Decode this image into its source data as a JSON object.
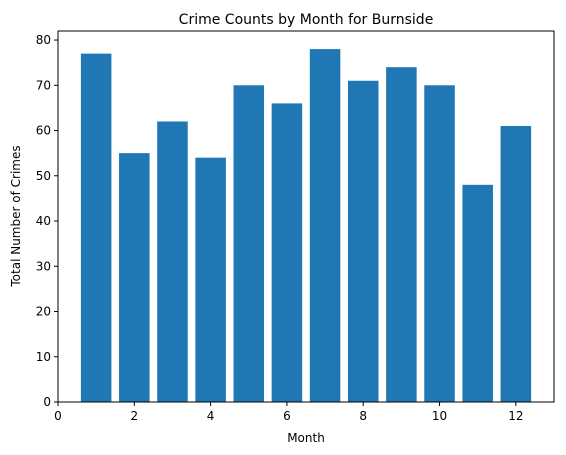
{
  "chart_data": {
    "type": "bar",
    "title": "Crime Counts by Month for Burnside",
    "xlabel": "Month",
    "ylabel": "Total Number of Crimes",
    "categories": [
      1,
      2,
      3,
      4,
      5,
      6,
      7,
      8,
      9,
      10,
      11,
      12
    ],
    "values": [
      77,
      55,
      62,
      54,
      70,
      66,
      78,
      71,
      74,
      70,
      48,
      61
    ],
    "xlim": [
      0,
      13
    ],
    "ylim": [
      0,
      82
    ],
    "xticks": [
      "0",
      "2",
      "4",
      "6",
      "8",
      "10",
      "12"
    ],
    "yticks": [
      "0",
      "10",
      "20",
      "30",
      "40",
      "50",
      "60",
      "70",
      "80"
    ],
    "bar_color": "#1f77b4",
    "grid": false
  }
}
